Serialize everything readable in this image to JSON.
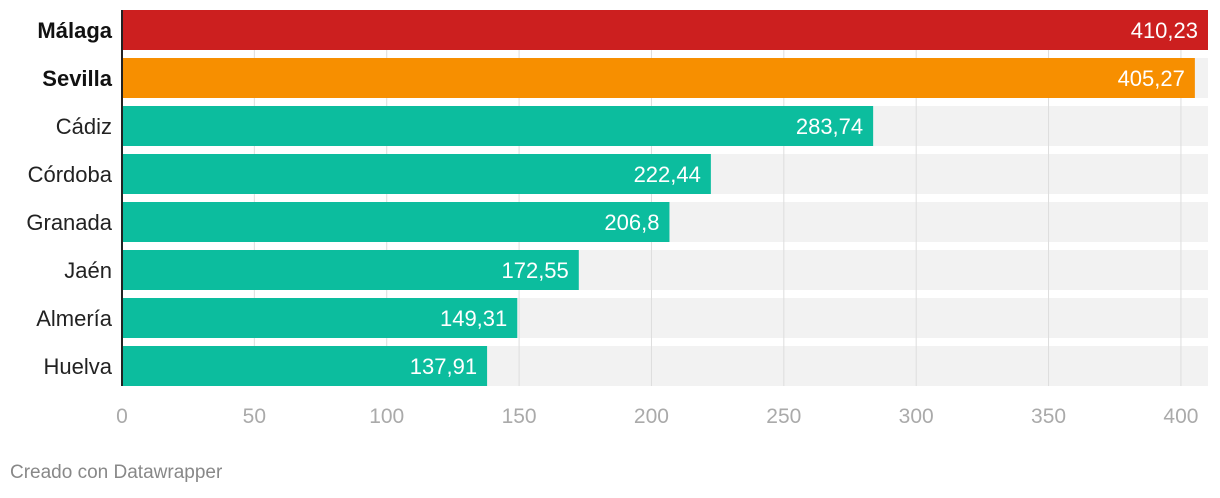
{
  "chart_data": {
    "type": "bar",
    "orientation": "horizontal",
    "categories": [
      "Málaga",
      "Sevilla",
      "Cádiz",
      "Córdoba",
      "Granada",
      "Jaén",
      "Almería",
      "Huelva"
    ],
    "values": [
      410.23,
      405.27,
      283.74,
      222.44,
      206.8,
      172.55,
      149.31,
      137.91
    ],
    "value_labels": [
      "410,23",
      "405,27",
      "283,74",
      "222,44",
      "206,8",
      "172,55",
      "149,31",
      "137,91"
    ],
    "bold_categories": [
      "Málaga",
      "Sevilla"
    ],
    "bar_colors": [
      "#cc1f1f",
      "#f78f00",
      "#0cbd9e",
      "#0cbd9e",
      "#0cbd9e",
      "#0cbd9e",
      "#0cbd9e",
      "#0cbd9e"
    ],
    "track_color": "#f2f2f2",
    "grid_color": "#dddddd",
    "axis_color": "#222222",
    "xlim": [
      0,
      410.23
    ],
    "xticks": [
      0,
      50,
      100,
      150,
      200,
      250,
      300,
      350,
      400
    ],
    "xtick_labels": [
      "0",
      "50",
      "100",
      "150",
      "200",
      "250",
      "300",
      "350",
      "400"
    ],
    "title": "",
    "xlabel": "",
    "ylabel": ""
  },
  "footer": {
    "credit": "Creado con Datawrapper"
  }
}
